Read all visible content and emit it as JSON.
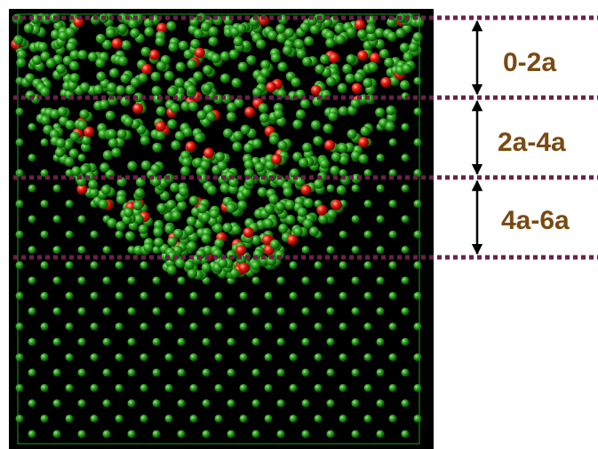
{
  "annotations": {
    "labels": [
      "0-2a",
      "2a-4a",
      "4a-6a"
    ]
  }
}
